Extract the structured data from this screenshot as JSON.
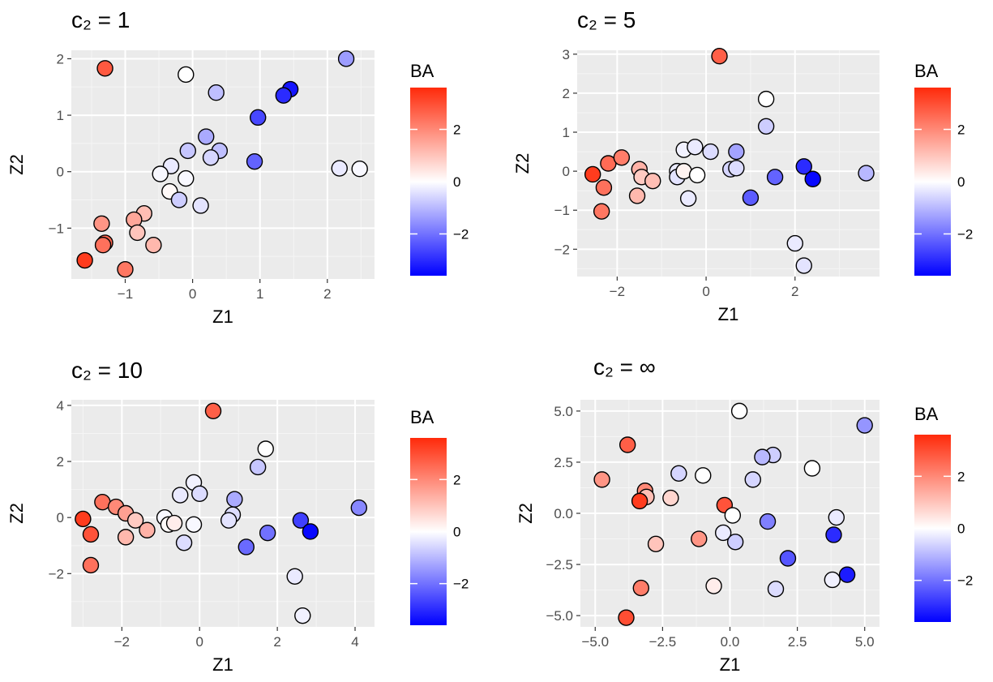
{
  "chart_data": [
    {
      "type": "scatter",
      "title": "c₂ = 1",
      "xlabel": "Z1",
      "ylabel": "Z2",
      "xlim": [
        -1.8,
        2.7
      ],
      "ylim": [
        -1.9,
        2.15
      ],
      "xticks": [
        -1,
        0,
        1,
        2
      ],
      "yticks": [
        -1,
        0,
        1,
        2
      ],
      "xtick_labels": [
        "−1",
        "0",
        "1",
        "2"
      ],
      "ytick_labels": [
        "−1",
        "0",
        "1",
        "2"
      ],
      "color_var": "BA",
      "points": [
        {
          "x": -1.3,
          "y": 1.83,
          "c": 2.8
        },
        {
          "x": -0.1,
          "y": 1.72,
          "c": 0.0
        },
        {
          "x": 2.28,
          "y": 2.0,
          "c": -1.4
        },
        {
          "x": 1.45,
          "y": 1.46,
          "c": -3.3
        },
        {
          "x": 1.35,
          "y": 1.35,
          "c": -3.0
        },
        {
          "x": 0.35,
          "y": 1.4,
          "c": -0.9
        },
        {
          "x": 0.97,
          "y": 0.96,
          "c": -2.6
        },
        {
          "x": 0.2,
          "y": 0.62,
          "c": -1.2
        },
        {
          "x": -0.07,
          "y": 0.37,
          "c": -0.8
        },
        {
          "x": 0.4,
          "y": 0.37,
          "c": -0.9
        },
        {
          "x": 0.27,
          "y": 0.25,
          "c": -0.6
        },
        {
          "x": 0.92,
          "y": 0.18,
          "c": -2.2
        },
        {
          "x": 2.18,
          "y": 0.06,
          "c": -0.3
        },
        {
          "x": 2.48,
          "y": 0.05,
          "c": -0.1
        },
        {
          "x": -0.32,
          "y": 0.1,
          "c": -0.3
        },
        {
          "x": -0.48,
          "y": -0.04,
          "c": -0.1
        },
        {
          "x": -0.1,
          "y": -0.12,
          "c": -0.1
        },
        {
          "x": -0.34,
          "y": -0.35,
          "c": 0.1
        },
        {
          "x": -0.2,
          "y": -0.5,
          "c": -0.7
        },
        {
          "x": 0.12,
          "y": -0.6,
          "c": -0.4
        },
        {
          "x": -0.72,
          "y": -0.74,
          "c": 1.1
        },
        {
          "x": -0.87,
          "y": -0.85,
          "c": 1.5
        },
        {
          "x": -0.82,
          "y": -1.08,
          "c": 1.0
        },
        {
          "x": -1.35,
          "y": -0.92,
          "c": 1.8
        },
        {
          "x": -0.58,
          "y": -1.3,
          "c": 1.2
        },
        {
          "x": -1.3,
          "y": -1.26,
          "c": 2.6
        },
        {
          "x": -1.33,
          "y": -1.3,
          "c": 2.4
        },
        {
          "x": -1.6,
          "y": -1.57,
          "c": 3.3
        },
        {
          "x": -1.0,
          "y": -1.73,
          "c": 2.3
        }
      ]
    },
    {
      "type": "scatter",
      "title": "c₂ = 5",
      "xlabel": "Z1",
      "ylabel": "Z2",
      "xlim": [
        -2.9,
        3.9
      ],
      "ylim": [
        -2.7,
        3.1
      ],
      "xticks": [
        -2,
        0,
        2
      ],
      "yticks": [
        -2,
        -1,
        0,
        1,
        2,
        3
      ],
      "xtick_labels": [
        "−2",
        "0",
        "2"
      ],
      "ytick_labels": [
        "−2",
        "−1",
        "0",
        "1",
        "2",
        "3"
      ],
      "color_var": "BA",
      "points": [
        {
          "x": 0.3,
          "y": 2.95,
          "c": 2.7
        },
        {
          "x": 1.35,
          "y": 1.85,
          "c": 0.0
        },
        {
          "x": 1.35,
          "y": 1.15,
          "c": -0.7
        },
        {
          "x": -2.55,
          "y": -0.08,
          "c": 3.3
        },
        {
          "x": -2.2,
          "y": 0.2,
          "c": 2.5
        },
        {
          "x": -1.9,
          "y": 0.35,
          "c": 2.2
        },
        {
          "x": -2.3,
          "y": -0.42,
          "c": 2.4
        },
        {
          "x": -2.35,
          "y": -1.03,
          "c": 2.3
        },
        {
          "x": -1.5,
          "y": 0.05,
          "c": 1.3
        },
        {
          "x": -1.45,
          "y": -0.15,
          "c": 0.9
        },
        {
          "x": -1.2,
          "y": -0.25,
          "c": 1.1
        },
        {
          "x": -1.55,
          "y": -0.63,
          "c": 1.2
        },
        {
          "x": -0.65,
          "y": 0.0,
          "c": -0.3
        },
        {
          "x": -0.65,
          "y": -0.15,
          "c": -0.4
        },
        {
          "x": -0.5,
          "y": 0.0,
          "c": 0.2
        },
        {
          "x": -0.5,
          "y": 0.55,
          "c": -0.2
        },
        {
          "x": -0.25,
          "y": 0.62,
          "c": -0.3
        },
        {
          "x": 0.1,
          "y": 0.5,
          "c": -0.5
        },
        {
          "x": -0.2,
          "y": -0.1,
          "c": 0.0
        },
        {
          "x": -0.4,
          "y": -0.7,
          "c": -0.3
        },
        {
          "x": 0.55,
          "y": 0.05,
          "c": -0.6
        },
        {
          "x": 0.68,
          "y": 0.08,
          "c": -0.5
        },
        {
          "x": 0.68,
          "y": 0.5,
          "c": -1.3
        },
        {
          "x": 1.0,
          "y": -0.68,
          "c": -2.3
        },
        {
          "x": 1.55,
          "y": -0.15,
          "c": -2.2
        },
        {
          "x": 2.2,
          "y": 0.12,
          "c": -3.0
        },
        {
          "x": 2.4,
          "y": -0.2,
          "c": -3.5
        },
        {
          "x": 2.0,
          "y": -1.85,
          "c": -0.3
        },
        {
          "x": 2.2,
          "y": -2.42,
          "c": -0.4
        },
        {
          "x": 3.6,
          "y": -0.05,
          "c": -1.0
        }
      ]
    },
    {
      "type": "scatter",
      "title": "c₂ = 10",
      "xlabel": "Z1",
      "ylabel": "Z2",
      "xlim": [
        -3.3,
        4.5
      ],
      "ylim": [
        -3.9,
        4.2
      ],
      "xticks": [
        -2,
        0,
        2,
        4
      ],
      "yticks": [
        -2,
        0,
        2,
        4
      ],
      "xtick_labels": [
        "−2",
        "0",
        "2",
        "4"
      ],
      "ytick_labels": [
        "−2",
        "0",
        "2",
        "4"
      ],
      "color_var": "BA",
      "points": [
        {
          "x": 0.35,
          "y": 3.8,
          "c": 2.7
        },
        {
          "x": 1.7,
          "y": 2.45,
          "c": 0.0
        },
        {
          "x": 1.5,
          "y": 1.8,
          "c": -0.8
        },
        {
          "x": -0.15,
          "y": 1.25,
          "c": -0.2
        },
        {
          "x": -0.5,
          "y": 0.8,
          "c": -0.3
        },
        {
          "x": 0.0,
          "y": 0.85,
          "c": -0.5
        },
        {
          "x": 0.9,
          "y": 0.65,
          "c": -1.2
        },
        {
          "x": 0.85,
          "y": 0.1,
          "c": -0.5
        },
        {
          "x": 0.75,
          "y": -0.1,
          "c": -0.4
        },
        {
          "x": -2.5,
          "y": 0.55,
          "c": 2.4
        },
        {
          "x": -2.15,
          "y": 0.38,
          "c": 2.0
        },
        {
          "x": -1.9,
          "y": 0.15,
          "c": 1.6
        },
        {
          "x": -1.65,
          "y": -0.1,
          "c": 0.9
        },
        {
          "x": -1.35,
          "y": -0.45,
          "c": 1.3
        },
        {
          "x": -1.9,
          "y": -0.7,
          "c": 1.2
        },
        {
          "x": -3.0,
          "y": -0.05,
          "c": 3.3
        },
        {
          "x": -2.8,
          "y": -0.6,
          "c": 2.9
        },
        {
          "x": -2.8,
          "y": -1.7,
          "c": 2.4
        },
        {
          "x": -0.9,
          "y": 0.0,
          "c": -0.1
        },
        {
          "x": -0.8,
          "y": -0.25,
          "c": 0.1
        },
        {
          "x": -0.65,
          "y": -0.2,
          "c": 0.3
        },
        {
          "x": -0.15,
          "y": -0.25,
          "c": -0.1
        },
        {
          "x": -0.4,
          "y": -0.9,
          "c": -0.5
        },
        {
          "x": 1.75,
          "y": -0.55,
          "c": -2.0
        },
        {
          "x": 1.2,
          "y": -1.05,
          "c": -2.1
        },
        {
          "x": 2.6,
          "y": -0.1,
          "c": -2.7
        },
        {
          "x": 2.85,
          "y": -0.5,
          "c": -3.5
        },
        {
          "x": 4.1,
          "y": 0.35,
          "c": -1.7
        },
        {
          "x": 2.45,
          "y": -2.1,
          "c": -0.3
        },
        {
          "x": 2.65,
          "y": -3.5,
          "c": -0.2
        }
      ]
    },
    {
      "type": "scatter",
      "title": "c₂ = ∞",
      "xlabel": "Z1",
      "ylabel": "Z2",
      "xlim": [
        -5.55,
        5.55
      ],
      "ylim": [
        -5.55,
        5.55
      ],
      "xticks": [
        -5,
        -2.5,
        0,
        2.5,
        5
      ],
      "yticks": [
        -5,
        -2.5,
        0,
        2.5,
        5
      ],
      "xtick_labels": [
        "−5.0",
        "−2.5",
        "0.0",
        "2.5",
        "5.0"
      ],
      "ytick_labels": [
        "−5.0",
        "−2.5",
        "0.0",
        "2.5",
        "5.0"
      ],
      "color_var": "BA",
      "points": [
        {
          "x": 0.35,
          "y": 5.0,
          "c": 0.0
        },
        {
          "x": 5.0,
          "y": 4.3,
          "c": -1.5
        },
        {
          "x": -3.8,
          "y": 3.35,
          "c": 2.7
        },
        {
          "x": 1.6,
          "y": 2.85,
          "c": -0.7
        },
        {
          "x": 1.2,
          "y": 2.75,
          "c": -1.0
        },
        {
          "x": 3.05,
          "y": 2.2,
          "c": 0.0
        },
        {
          "x": -1.9,
          "y": 1.95,
          "c": -0.6
        },
        {
          "x": -1.0,
          "y": 1.85,
          "c": 0.0
        },
        {
          "x": 0.85,
          "y": 1.65,
          "c": -0.6
        },
        {
          "x": -4.75,
          "y": 1.65,
          "c": 1.8
        },
        {
          "x": -3.15,
          "y": 1.1,
          "c": 2.0
        },
        {
          "x": -3.1,
          "y": 0.8,
          "c": 1.1
        },
        {
          "x": -2.2,
          "y": 0.75,
          "c": 0.7
        },
        {
          "x": -3.35,
          "y": 0.6,
          "c": 3.3
        },
        {
          "x": -0.2,
          "y": 0.4,
          "c": 2.9
        },
        {
          "x": 0.1,
          "y": -0.1,
          "c": 0.0
        },
        {
          "x": -0.25,
          "y": -0.95,
          "c": -0.3
        },
        {
          "x": -1.15,
          "y": -1.25,
          "c": 1.8
        },
        {
          "x": -2.75,
          "y": -1.5,
          "c": 1.0
        },
        {
          "x": 0.2,
          "y": -1.4,
          "c": -0.7
        },
        {
          "x": 1.4,
          "y": -0.4,
          "c": -1.8
        },
        {
          "x": 3.95,
          "y": -0.2,
          "c": -0.3
        },
        {
          "x": 3.85,
          "y": -1.05,
          "c": -3.0
        },
        {
          "x": 2.15,
          "y": -2.2,
          "c": -2.4
        },
        {
          "x": 4.35,
          "y": -3.0,
          "c": -3.2
        },
        {
          "x": 3.8,
          "y": -3.25,
          "c": -0.2
        },
        {
          "x": 1.7,
          "y": -3.7,
          "c": -0.5
        },
        {
          "x": -0.6,
          "y": -3.55,
          "c": 0.3
        },
        {
          "x": -3.3,
          "y": -3.65,
          "c": 2.2
        },
        {
          "x": -3.85,
          "y": -5.1,
          "c": 3.0
        }
      ]
    }
  ],
  "legend": {
    "title": "BA",
    "cmin": -3.6,
    "cmax": 3.6,
    "ticks": [
      2,
      0,
      -2
    ],
    "tick_labels": [
      "2",
      "0",
      "−2"
    ],
    "colors": {
      "low": "#0000ff",
      "mid": "#ffffff",
      "high": "#ff2a0a"
    }
  },
  "style": {
    "panel_bg": "#ebebeb",
    "grid_major": "#ffffff",
    "grid_minor": "#f5f5f5"
  }
}
